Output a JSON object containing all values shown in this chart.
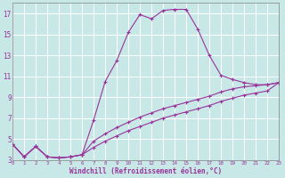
{
  "background_color": "#c8e8e8",
  "grid_color": "#ffffff",
  "line_color": "#993399",
  "xlabel": "Windchill (Refroidissement éolien,°C)",
  "xlim": [
    0,
    23
  ],
  "ylim": [
    3,
    18
  ],
  "xticks": [
    0,
    1,
    2,
    3,
    4,
    5,
    6,
    7,
    8,
    9,
    10,
    11,
    12,
    13,
    14,
    15,
    16,
    17,
    18,
    19,
    20,
    21,
    22,
    23
  ],
  "yticks": [
    3,
    5,
    7,
    9,
    11,
    13,
    15,
    17
  ],
  "curve1_x": [
    0,
    1,
    2,
    3,
    4,
    5,
    6,
    7,
    8,
    9,
    10,
    11,
    12,
    13,
    14,
    15,
    16,
    17,
    18,
    19,
    20,
    21,
    22,
    23
  ],
  "curve1_y": [
    4.5,
    3.3,
    4.3,
    3.3,
    3.2,
    3.3,
    3.5,
    6.8,
    10.5,
    12.5,
    15.2,
    16.9,
    16.5,
    17.3,
    17.4,
    17.4,
    15.5,
    13.0,
    11.1,
    10.7,
    10.4,
    10.2,
    10.2,
    10.4
  ],
  "curve2_x": [
    0,
    1,
    2,
    3,
    4,
    5,
    6,
    7,
    8,
    9,
    10,
    11,
    12,
    13,
    14,
    15,
    16,
    17,
    18,
    19,
    20,
    21,
    22,
    23
  ],
  "curve2_y": [
    4.5,
    3.3,
    4.3,
    3.3,
    3.2,
    3.3,
    3.5,
    4.8,
    5.5,
    6.1,
    6.6,
    7.1,
    7.5,
    7.9,
    8.2,
    8.5,
    8.8,
    9.1,
    9.5,
    9.8,
    10.0,
    10.1,
    10.2,
    10.4
  ],
  "curve3_x": [
    0,
    1,
    2,
    3,
    4,
    5,
    6,
    7,
    8,
    9,
    10,
    11,
    12,
    13,
    14,
    15,
    16,
    17,
    18,
    19,
    20,
    21,
    22,
    23
  ],
  "curve3_y": [
    4.5,
    3.3,
    4.3,
    3.3,
    3.2,
    3.3,
    3.5,
    4.2,
    4.8,
    5.3,
    5.8,
    6.2,
    6.6,
    7.0,
    7.3,
    7.6,
    7.9,
    8.2,
    8.6,
    8.9,
    9.2,
    9.4,
    9.6,
    10.4
  ]
}
